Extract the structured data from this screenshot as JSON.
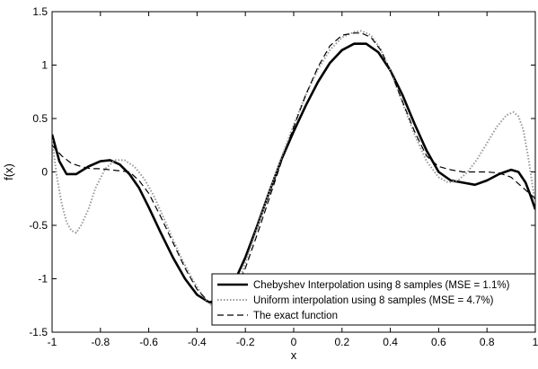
{
  "chart_data": {
    "type": "line",
    "title": "",
    "xlabel": "x",
    "ylabel": "f(x)",
    "xlim": [
      -1,
      1
    ],
    "ylim": [
      -1.5,
      1.5
    ],
    "grid": false,
    "legend_position": "bottom-right",
    "x_ticks": [
      -1,
      -0.8,
      -0.6,
      -0.4,
      -0.2,
      0,
      0.2,
      0.4,
      0.6,
      0.8,
      1
    ],
    "x_tick_labels": [
      "-1",
      "-0.8",
      "-0.6",
      "-0.4",
      "-0.2",
      "0",
      "0.2",
      "0.4",
      "0.6",
      "0.8",
      "1"
    ],
    "y_ticks": [
      -1.5,
      -1,
      -0.5,
      0,
      0.5,
      1,
      1.5
    ],
    "y_tick_labels": [
      "-1.5",
      "-1",
      "-0.5",
      "0",
      "0.5",
      "1",
      "1.5"
    ],
    "series": [
      {
        "name": "Chebyshev Interpolation using 8 samples (MSE = 1.1%)",
        "style": "solid-thick",
        "color": "#000000",
        "x": [
          -1,
          -0.97,
          -0.94,
          -0.9,
          -0.85,
          -0.8,
          -0.76,
          -0.72,
          -0.68,
          -0.64,
          -0.6,
          -0.55,
          -0.5,
          -0.45,
          -0.4,
          -0.35,
          -0.3,
          -0.25,
          -0.2,
          -0.15,
          -0.1,
          -0.05,
          0,
          0.05,
          0.1,
          0.15,
          0.2,
          0.25,
          0.3,
          0.35,
          0.4,
          0.45,
          0.5,
          0.55,
          0.6,
          0.65,
          0.7,
          0.75,
          0.8,
          0.85,
          0.9,
          0.93,
          0.96,
          0.98,
          1
        ],
        "y": [
          0.35,
          0.1,
          -0.02,
          -0.02,
          0.05,
          0.1,
          0.11,
          0.07,
          -0.02,
          -0.15,
          -0.33,
          -0.57,
          -0.8,
          -1.0,
          -1.15,
          -1.22,
          -1.2,
          -1.05,
          -0.8,
          -0.5,
          -0.18,
          0.12,
          0.38,
          0.62,
          0.84,
          1.02,
          1.14,
          1.2,
          1.2,
          1.12,
          0.95,
          0.72,
          0.45,
          0.2,
          0.0,
          -0.08,
          -0.1,
          -0.12,
          -0.08,
          -0.02,
          0.02,
          0.0,
          -0.1,
          -0.22,
          -0.35
        ]
      },
      {
        "name": "Uniform interpolation using 8 samples (MSE = 4.7%)",
        "style": "dotted",
        "color": "#999999",
        "x": [
          -1,
          -0.98,
          -0.96,
          -0.94,
          -0.92,
          -0.9,
          -0.88,
          -0.85,
          -0.82,
          -0.78,
          -0.74,
          -0.7,
          -0.66,
          -0.62,
          -0.58,
          -0.54,
          -0.5,
          -0.46,
          -0.42,
          -0.38,
          -0.34,
          -0.3,
          -0.26,
          -0.22,
          -0.18,
          -0.14,
          -0.1,
          -0.05,
          0,
          0.05,
          0.1,
          0.15,
          0.2,
          0.25,
          0.28,
          0.32,
          0.36,
          0.4,
          0.45,
          0.5,
          0.55,
          0.6,
          0.64,
          0.68,
          0.72,
          0.76,
          0.8,
          0.84,
          0.88,
          0.91,
          0.93,
          0.95,
          0.97,
          0.99,
          1
        ],
        "y": [
          0.3,
          -0.05,
          -0.3,
          -0.47,
          -0.55,
          -0.57,
          -0.5,
          -0.35,
          -0.15,
          0.03,
          0.11,
          0.11,
          0.05,
          -0.06,
          -0.22,
          -0.42,
          -0.63,
          -0.83,
          -1.0,
          -1.15,
          -1.25,
          -1.27,
          -1.18,
          -0.98,
          -0.72,
          -0.45,
          -0.18,
          0.14,
          0.44,
          0.72,
          0.96,
          1.14,
          1.26,
          1.31,
          1.32,
          1.28,
          1.15,
          0.95,
          0.65,
          0.35,
          0.1,
          -0.05,
          -0.1,
          -0.08,
          0.0,
          0.12,
          0.27,
          0.42,
          0.53,
          0.56,
          0.52,
          0.4,
          0.15,
          -0.15,
          -0.3
        ]
      },
      {
        "name": "The exact function",
        "style": "dashed",
        "color": "#000000",
        "x": [
          -1,
          -0.96,
          -0.92,
          -0.88,
          -0.84,
          -0.8,
          -0.76,
          -0.72,
          -0.68,
          -0.64,
          -0.6,
          -0.55,
          -0.5,
          -0.45,
          -0.4,
          -0.35,
          -0.3,
          -0.25,
          -0.2,
          -0.15,
          -0.1,
          -0.05,
          0,
          0.05,
          0.1,
          0.15,
          0.2,
          0.25,
          0.28,
          0.32,
          0.36,
          0.4,
          0.45,
          0.5,
          0.55,
          0.6,
          0.65,
          0.7,
          0.75,
          0.8,
          0.85,
          0.9,
          0.95,
          1
        ],
        "y": [
          0.25,
          0.15,
          0.08,
          0.05,
          0.03,
          0.03,
          0.02,
          0.01,
          0.0,
          -0.08,
          -0.2,
          -0.42,
          -0.66,
          -0.9,
          -1.1,
          -1.22,
          -1.25,
          -1.15,
          -0.9,
          -0.58,
          -0.24,
          0.1,
          0.42,
          0.72,
          0.98,
          1.18,
          1.28,
          1.3,
          1.3,
          1.26,
          1.14,
          0.95,
          0.66,
          0.38,
          0.15,
          0.05,
          0.02,
          0.0,
          0.0,
          0.0,
          -0.01,
          -0.05,
          -0.15,
          -0.25
        ]
      }
    ]
  }
}
